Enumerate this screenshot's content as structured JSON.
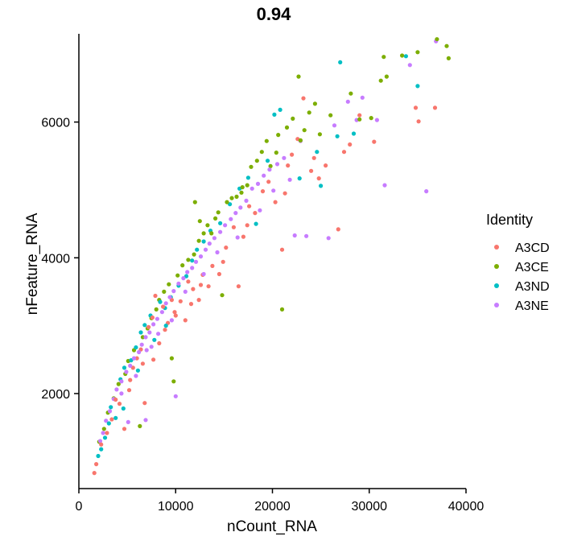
{
  "chart_data": {
    "type": "scatter",
    "title": "0.94",
    "xlabel": "nCount_RNA",
    "ylabel": "nFeature_RNA",
    "xlim": [
      0,
      40000
    ],
    "ylim": [
      600,
      7300
    ],
    "x_ticks": [
      0,
      10000,
      20000,
      30000,
      40000
    ],
    "y_ticks": [
      2000,
      4000,
      6000
    ],
    "grid": false,
    "legend": {
      "title": "Identity",
      "placement": "right"
    },
    "series": [
      {
        "name": "A3CD",
        "color": "#F8766D",
        "points": [
          [
            1600,
            830
          ],
          [
            1800,
            960
          ],
          [
            2300,
            1250
          ],
          [
            2900,
            1420
          ],
          [
            3400,
            1620
          ],
          [
            4200,
            1850
          ],
          [
            4700,
            1480
          ],
          [
            5200,
            2050
          ],
          [
            5600,
            2380
          ],
          [
            6000,
            2520
          ],
          [
            6400,
            2650
          ],
          [
            6800,
            1860
          ],
          [
            7200,
            2980
          ],
          [
            7600,
            3120
          ],
          [
            7900,
            3440
          ],
          [
            8300,
            2740
          ],
          [
            8700,
            3280
          ],
          [
            9200,
            3040
          ],
          [
            9600,
            3380
          ],
          [
            10000,
            3150
          ],
          [
            10500,
            3360
          ],
          [
            11000,
            3080
          ],
          [
            11300,
            3650
          ],
          [
            11800,
            3540
          ],
          [
            12400,
            3380
          ],
          [
            12800,
            3750
          ],
          [
            13400,
            3580
          ],
          [
            13800,
            3880
          ],
          [
            14500,
            3760
          ],
          [
            15200,
            4150
          ],
          [
            16000,
            4450
          ],
          [
            16500,
            3580
          ],
          [
            17000,
            4310
          ],
          [
            17600,
            4760
          ],
          [
            18200,
            4660
          ],
          [
            19000,
            4980
          ],
          [
            19600,
            5120
          ],
          [
            20300,
            4820
          ],
          [
            21000,
            4120
          ],
          [
            21600,
            5360
          ],
          [
            22000,
            5520
          ],
          [
            22600,
            5750
          ],
          [
            23200,
            6350
          ],
          [
            24000,
            5280
          ],
          [
            24800,
            5170
          ],
          [
            25500,
            5360
          ],
          [
            26800,
            4420
          ],
          [
            27400,
            5560
          ],
          [
            28000,
            5670
          ],
          [
            29000,
            6100
          ],
          [
            30500,
            5710
          ],
          [
            34800,
            6210
          ],
          [
            35100,
            6010
          ],
          [
            36800,
            6210
          ],
          [
            7700,
            2500
          ],
          [
            9900,
            3200
          ],
          [
            11600,
            3320
          ],
          [
            8900,
            2940
          ],
          [
            6600,
            2440
          ],
          [
            5300,
            2200
          ],
          [
            3800,
            1910
          ],
          [
            12600,
            3600
          ],
          [
            14900,
            3940
          ],
          [
            17400,
            4480
          ],
          [
            21300,
            4950
          ],
          [
            24300,
            5470
          ]
        ]
      },
      {
        "name": "A3CE",
        "color": "#7CAE00",
        "points": [
          [
            2100,
            1290
          ],
          [
            2600,
            1480
          ],
          [
            3000,
            1720
          ],
          [
            3600,
            1930
          ],
          [
            4100,
            2140
          ],
          [
            4800,
            2290
          ],
          [
            5100,
            2480
          ],
          [
            5700,
            2640
          ],
          [
            6300,
            1520
          ],
          [
            6600,
            2830
          ],
          [
            7100,
            2960
          ],
          [
            7500,
            3110
          ],
          [
            8000,
            3240
          ],
          [
            8300,
            3380
          ],
          [
            8800,
            3500
          ],
          [
            9300,
            3610
          ],
          [
            9600,
            2520
          ],
          [
            9800,
            2180
          ],
          [
            10200,
            3740
          ],
          [
            10700,
            3890
          ],
          [
            11300,
            3970
          ],
          [
            11900,
            4050
          ],
          [
            12400,
            4250
          ],
          [
            12900,
            4360
          ],
          [
            13300,
            4480
          ],
          [
            13700,
            4360
          ],
          [
            14100,
            4580
          ],
          [
            14400,
            4670
          ],
          [
            14800,
            3450
          ],
          [
            15300,
            4820
          ],
          [
            15800,
            4880
          ],
          [
            16300,
            4900
          ],
          [
            16800,
            4960
          ],
          [
            17400,
            5070
          ],
          [
            17800,
            5340
          ],
          [
            18400,
            5430
          ],
          [
            18900,
            5560
          ],
          [
            19400,
            5720
          ],
          [
            19800,
            5350
          ],
          [
            20600,
            5810
          ],
          [
            21000,
            3240
          ],
          [
            21500,
            5920
          ],
          [
            22100,
            6050
          ],
          [
            22700,
            6670
          ],
          [
            23300,
            5880
          ],
          [
            23800,
            6140
          ],
          [
            24400,
            6270
          ],
          [
            24900,
            5820
          ],
          [
            26000,
            6100
          ],
          [
            28100,
            6420
          ],
          [
            29000,
            6040
          ],
          [
            30200,
            6060
          ],
          [
            31200,
            6610
          ],
          [
            31800,
            6670
          ],
          [
            31500,
            6960
          ],
          [
            33400,
            6980
          ],
          [
            35000,
            7030
          ],
          [
            37000,
            7220
          ],
          [
            38000,
            7120
          ],
          [
            38200,
            6940
          ],
          [
            12000,
            4820
          ],
          [
            12500,
            4540
          ],
          [
            16900,
            5040
          ],
          [
            20400,
            5550
          ],
          [
            22900,
            5730
          ]
        ]
      },
      {
        "name": "A3ND",
        "color": "#00BFC4",
        "points": [
          [
            2000,
            1080
          ],
          [
            2300,
            1180
          ],
          [
            2700,
            1350
          ],
          [
            3100,
            1560
          ],
          [
            3300,
            1800
          ],
          [
            3800,
            1640
          ],
          [
            4300,
            2210
          ],
          [
            4700,
            2380
          ],
          [
            5400,
            2490
          ],
          [
            5900,
            2680
          ],
          [
            6400,
            2900
          ],
          [
            6800,
            3010
          ],
          [
            7400,
            3150
          ],
          [
            7800,
            2790
          ],
          [
            8400,
            3350
          ],
          [
            8900,
            3260
          ],
          [
            9500,
            3420
          ],
          [
            10300,
            3590
          ],
          [
            11100,
            3730
          ],
          [
            11700,
            3960
          ],
          [
            12200,
            4120
          ],
          [
            12900,
            4240
          ],
          [
            13600,
            4400
          ],
          [
            14600,
            4510
          ],
          [
            15600,
            4790
          ],
          [
            16600,
            5020
          ],
          [
            17500,
            5180
          ],
          [
            18300,
            4500
          ],
          [
            19500,
            5430
          ],
          [
            20200,
            6110
          ],
          [
            20800,
            6180
          ],
          [
            22800,
            5170
          ],
          [
            24600,
            5560
          ],
          [
            25000,
            5060
          ],
          [
            26700,
            5790
          ],
          [
            27000,
            6880
          ],
          [
            28400,
            5830
          ],
          [
            33800,
            6970
          ],
          [
            35000,
            6530
          ],
          [
            4600,
            1780
          ],
          [
            6100,
            2340
          ],
          [
            9000,
            3000
          ]
        ]
      },
      {
        "name": "A3NE",
        "color": "#C77CFF",
        "points": [
          [
            2200,
            1300
          ],
          [
            2500,
            1420
          ],
          [
            2800,
            1600
          ],
          [
            3200,
            1740
          ],
          [
            3600,
            1920
          ],
          [
            3900,
            2060
          ],
          [
            4400,
            2180
          ],
          [
            4900,
            2320
          ],
          [
            5300,
            2410
          ],
          [
            5700,
            2520
          ],
          [
            6200,
            2610
          ],
          [
            6500,
            2720
          ],
          [
            6900,
            2830
          ],
          [
            7300,
            2900
          ],
          [
            7700,
            3020
          ],
          [
            8100,
            3100
          ],
          [
            8600,
            3200
          ],
          [
            9000,
            3330
          ],
          [
            9400,
            3420
          ],
          [
            9800,
            3510
          ],
          [
            10300,
            3620
          ],
          [
            10800,
            3700
          ],
          [
            11200,
            3790
          ],
          [
            11700,
            3850
          ],
          [
            12100,
            3940
          ],
          [
            12600,
            4020
          ],
          [
            13100,
            4120
          ],
          [
            13500,
            4210
          ],
          [
            14000,
            4290
          ],
          [
            14600,
            4380
          ],
          [
            15100,
            4480
          ],
          [
            15700,
            4570
          ],
          [
            16200,
            4660
          ],
          [
            16700,
            4740
          ],
          [
            17300,
            4840
          ],
          [
            17900,
            5020
          ],
          [
            18500,
            5090
          ],
          [
            19100,
            5210
          ],
          [
            19700,
            5300
          ],
          [
            20500,
            5380
          ],
          [
            21200,
            5470
          ],
          [
            21800,
            5150
          ],
          [
            22300,
            4330
          ],
          [
            22900,
            5720
          ],
          [
            23500,
            4320
          ],
          [
            25800,
            4290
          ],
          [
            26400,
            5950
          ],
          [
            27800,
            6300
          ],
          [
            28700,
            6030
          ],
          [
            29300,
            6360
          ],
          [
            30800,
            6030
          ],
          [
            31600,
            5070
          ],
          [
            34200,
            6840
          ],
          [
            35900,
            4980
          ],
          [
            36900,
            7190
          ],
          [
            6900,
            1610
          ],
          [
            10000,
            1960
          ],
          [
            5100,
            1580
          ],
          [
            7000,
            2640
          ],
          [
            8200,
            2880
          ],
          [
            9600,
            3080
          ],
          [
            11000,
            3500
          ],
          [
            12900,
            3760
          ],
          [
            14300,
            4080
          ],
          [
            16400,
            4300
          ],
          [
            18700,
            4700
          ],
          [
            20100,
            4990
          ],
          [
            4400,
            2000
          ],
          [
            5900,
            2260
          ],
          [
            7500,
            2690
          ]
        ]
      }
    ]
  }
}
